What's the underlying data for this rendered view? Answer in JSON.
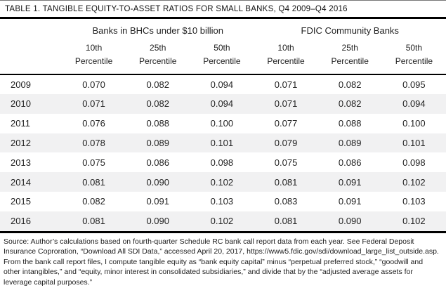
{
  "title": "TABLE 1. TANGIBLE EQUITY-TO-ASSET RATIOS FOR SMALL BANKS, Q4 2009–Q4 2016",
  "table": {
    "groups": [
      {
        "label": "Banks in BHCs under $10 billion"
      },
      {
        "label": "FDIC Community Banks"
      }
    ],
    "columns": [
      {
        "line1": "10th",
        "line2": "Percentile"
      },
      {
        "line1": "25th",
        "line2": "Percentile"
      },
      {
        "line1": "50th",
        "line2": "Percentile"
      },
      {
        "line1": "10th",
        "line2": "Percentile"
      },
      {
        "line1": "25th",
        "line2": "Percentile"
      },
      {
        "line1": "50th",
        "line2": "Percentile"
      }
    ],
    "rows": [
      {
        "year": "2009",
        "values": [
          "0.070",
          "0.082",
          "0.094",
          "0.071",
          "0.082",
          "0.095"
        ]
      },
      {
        "year": "2010",
        "values": [
          "0.071",
          "0.082",
          "0.094",
          "0.071",
          "0.082",
          "0.094"
        ]
      },
      {
        "year": "2011",
        "values": [
          "0.076",
          "0.088",
          "0.100",
          "0.077",
          "0.088",
          "0.100"
        ]
      },
      {
        "year": "2012",
        "values": [
          "0.078",
          "0.089",
          "0.101",
          "0.079",
          "0.089",
          "0.101"
        ]
      },
      {
        "year": "2013",
        "values": [
          "0.075",
          "0.086",
          "0.098",
          "0.075",
          "0.086",
          "0.098"
        ]
      },
      {
        "year": "2014",
        "values": [
          "0.081",
          "0.090",
          "0.102",
          "0.081",
          "0.091",
          "0.102"
        ]
      },
      {
        "year": "2015",
        "values": [
          "0.082",
          "0.091",
          "0.103",
          "0.083",
          "0.091",
          "0.103"
        ]
      },
      {
        "year": "2016",
        "values": [
          "0.081",
          "0.090",
          "0.102",
          "0.081",
          "0.090",
          "0.102"
        ]
      }
    ]
  },
  "source": "Source: Author’s calculations based on fourth-quarter Schedule RC bank call report data from each year. See Federal Deposit Insurance Coproration, “Download All SDI Data,” accessed April 20, 2017, https://www5.fdic.gov/sdi/download_large_list_outside.asp. From the bank call report files, I compute tangible equity as “bank equity capital” minus “perpetual preferred stock,” “goodwill and other intangibles,” and “equity, minor interest in consolidated subsidiaries,” and divide that by the “adjusted average assets for leverage capital purposes.”",
  "colors": {
    "stripe": "#f1f1f2",
    "rule": "#000000",
    "text": "#222222"
  }
}
